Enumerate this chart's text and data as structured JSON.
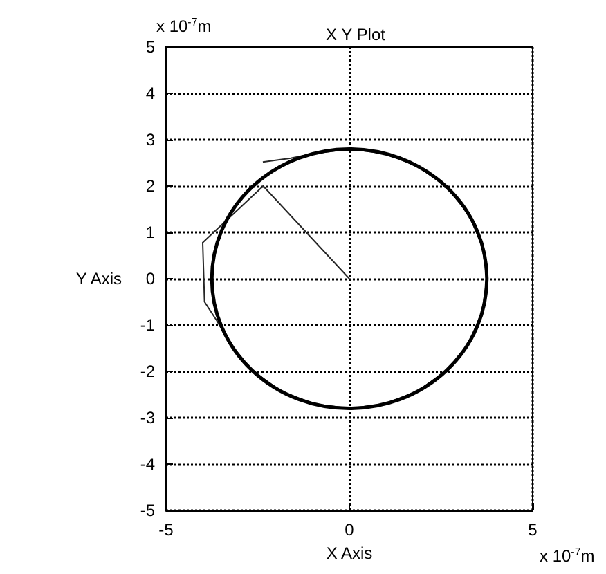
{
  "chart_data": {
    "type": "line",
    "title": "X Y Plot",
    "xlabel": "X Axis",
    "ylabel": "Y Axis",
    "annotations": [
      "x 10$^{-7}$m",
      "x 10$^{-7}$m"
    ],
    "xlim": [
      -5,
      5
    ],
    "xticks": [
      -5,
      0,
      5
    ],
    "ylim": [
      -5,
      5
    ],
    "yticks": [
      -5,
      -4,
      -3,
      -2,
      -1,
      0,
      1,
      2,
      3,
      4,
      5
    ],
    "grid": true,
    "marker": "none",
    "line_style": "solid",
    "series": [
      {
        "color": "#262626",
        "x": [
          0,
          -2.35,
          -4.0,
          -3.95,
          -3.62,
          -3.25,
          -2.65,
          -1.88,
          -0.97,
          0,
          0.97,
          1.88,
          2.65,
          3.25,
          3.62,
          3.75,
          3.62,
          3.25,
          2.65,
          1.88,
          0.97,
          0,
          -0.97,
          -1.6,
          -2.36
        ],
        "values": [
          0,
          2.0,
          0.78,
          -0.5,
          -0.9,
          -1.4,
          -1.98,
          -2.42,
          -2.7,
          -2.8,
          -2.7,
          -2.42,
          -1.98,
          -1.4,
          -0.72,
          0,
          0.72,
          1.4,
          1.98,
          2.42,
          2.7,
          2.8,
          2.7,
          2.6,
          2.52
        ]
      }
    ]
  }
}
